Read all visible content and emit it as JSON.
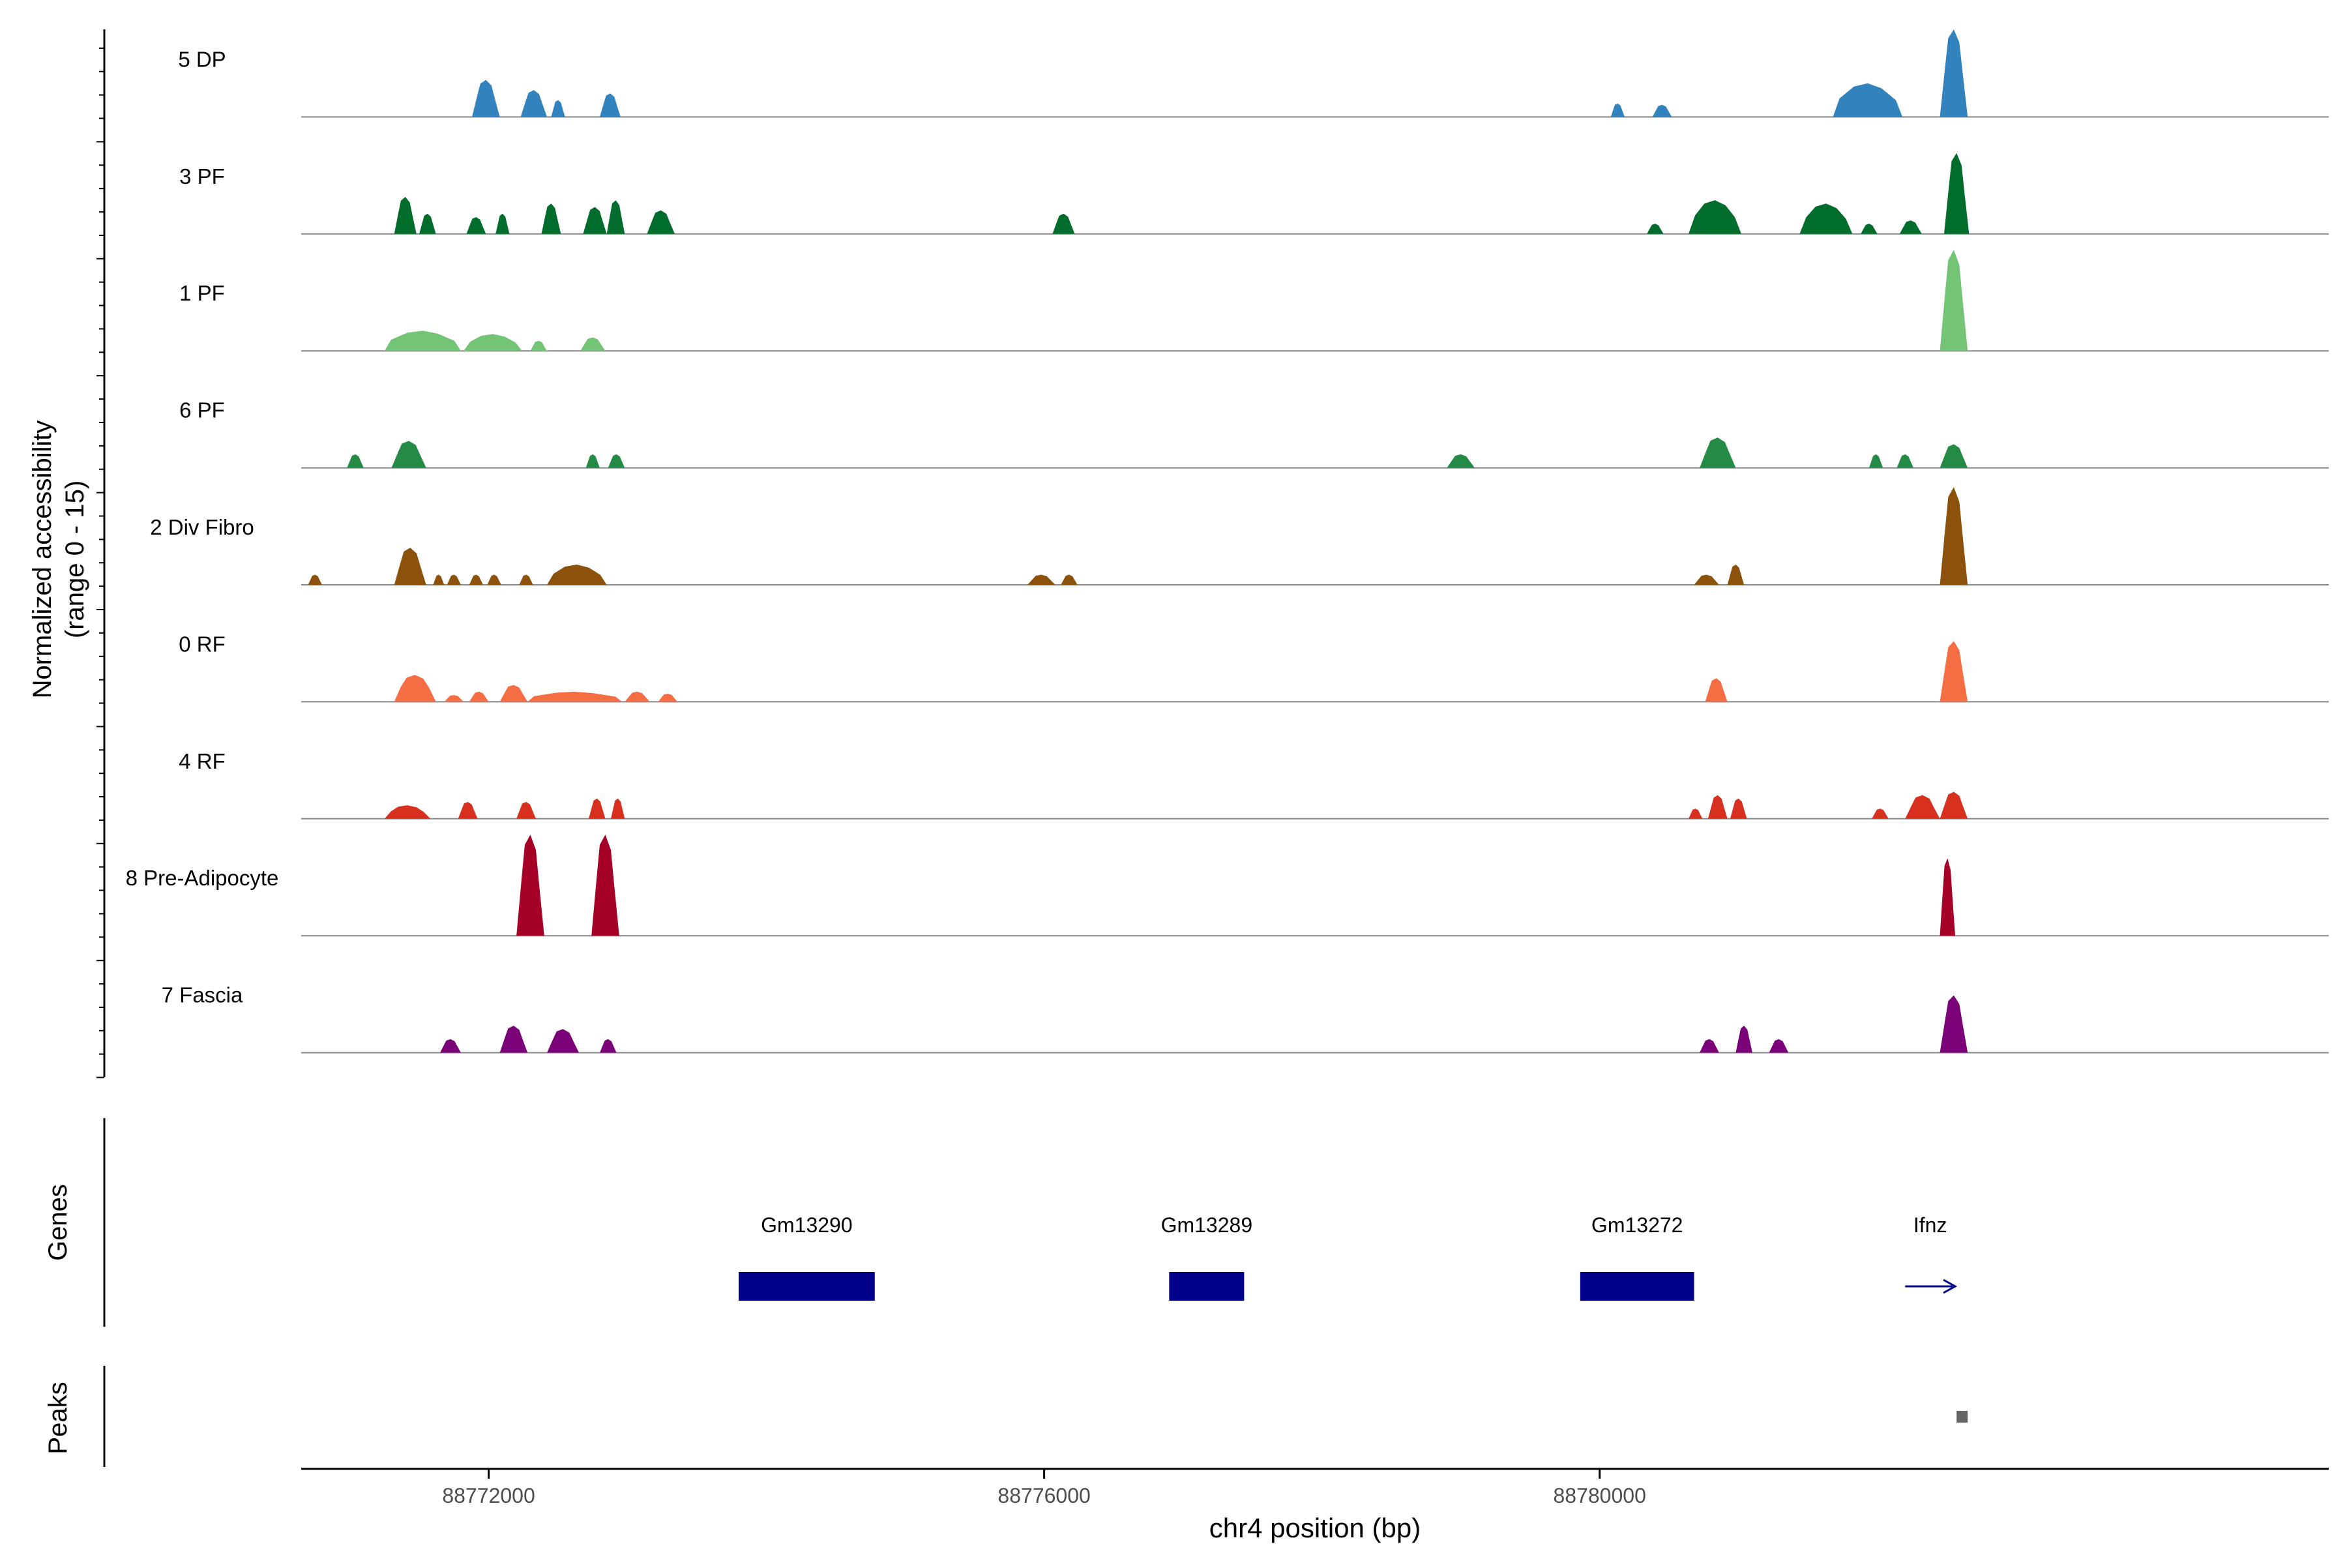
{
  "chart_data": {
    "type": "area",
    "ylabel": "Normalized accessibility",
    "ylabel_range": "(range 0 - 15)",
    "xlabel": "chr4 position (bp)",
    "xlim": [
      88770650,
      88785250
    ],
    "x_ticks": [
      88772000,
      88776000,
      88780000
    ],
    "x_tick_labels": [
      "88772000",
      "88776000",
      "88780000"
    ],
    "ylim": [
      0,
      15
    ],
    "grid": false,
    "tracks": [
      {
        "name": "5 DP",
        "color": "#3182bd",
        "peaks": [
          [
            88771880,
            88772080,
            5.5
          ],
          [
            88772230,
            88772420,
            4.0
          ],
          [
            88772450,
            88772550,
            2.5
          ],
          [
            88772800,
            88772950,
            3.5
          ],
          [
            88780080,
            88780180,
            2.0
          ],
          [
            88780380,
            88780520,
            1.8
          ],
          [
            88781680,
            88782180,
            5.0
          ],
          [
            88782450,
            88782650,
            13.0
          ]
        ]
      },
      {
        "name": "3 PF",
        "color": "#006d2c",
        "peaks": [
          [
            88771320,
            88771480,
            5.5
          ],
          [
            88771500,
            88771620,
            3.0
          ],
          [
            88771840,
            88771980,
            2.5
          ],
          [
            88772050,
            88772150,
            3.0
          ],
          [
            88772380,
            88772520,
            4.5
          ],
          [
            88772680,
            88772850,
            4.0
          ],
          [
            88772850,
            88772980,
            5.0
          ],
          [
            88773140,
            88773340,
            3.5
          ],
          [
            88776060,
            88776220,
            3.0
          ],
          [
            88780340,
            88780460,
            1.5
          ],
          [
            88780640,
            88781020,
            5.0
          ],
          [
            88781440,
            88781820,
            4.5
          ],
          [
            88781880,
            88782000,
            1.5
          ],
          [
            88782160,
            88782320,
            2.0
          ],
          [
            88782480,
            88782660,
            12.0
          ]
        ]
      },
      {
        "name": "1 PF",
        "color": "#74c476",
        "peaks": [
          [
            88771250,
            88771800,
            3.0
          ],
          [
            88771820,
            88772240,
            2.5
          ],
          [
            88772300,
            88772420,
            1.5
          ],
          [
            88772660,
            88772840,
            2.0
          ],
          [
            88782450,
            88782650,
            15.0
          ]
        ]
      },
      {
        "name": "6 PF",
        "color": "#238b45",
        "peaks": [
          [
            88770980,
            88771100,
            2.0
          ],
          [
            88771300,
            88771550,
            4.0
          ],
          [
            88772700,
            88772800,
            2.0
          ],
          [
            88772860,
            88772980,
            2.0
          ],
          [
            88778900,
            88779100,
            2.0
          ],
          [
            88780720,
            88780980,
            4.5
          ],
          [
            88781940,
            88782040,
            2.0
          ],
          [
            88782140,
            88782260,
            2.0
          ],
          [
            88782450,
            88782650,
            3.5
          ]
        ]
      },
      {
        "name": "2 Div Fibro",
        "color": "#8c510a",
        "peaks": [
          [
            88770700,
            88770800,
            1.5
          ],
          [
            88771320,
            88771550,
            5.5
          ],
          [
            88771600,
            88771680,
            1.5
          ],
          [
            88771700,
            88771800,
            1.5
          ],
          [
            88771860,
            88771960,
            1.5
          ],
          [
            88771990,
            88772090,
            1.5
          ],
          [
            88772220,
            88772320,
            1.5
          ],
          [
            88772420,
            88772850,
            3.0
          ],
          [
            88775880,
            88776080,
            1.5
          ],
          [
            88776120,
            88776240,
            1.5
          ],
          [
            88780680,
            88780860,
            1.5
          ],
          [
            88780920,
            88781040,
            3.0
          ],
          [
            88782450,
            88782650,
            14.5
          ]
        ]
      },
      {
        "name": "0 RF",
        "color": "#f46d43",
        "peaks": [
          [
            88771320,
            88771620,
            4.0
          ],
          [
            88771680,
            88771820,
            1.0
          ],
          [
            88771860,
            88772000,
            1.5
          ],
          [
            88772080,
            88772280,
            2.5
          ],
          [
            88772280,
            88772960,
            1.5
          ],
          [
            88773220,
            88773360,
            1.2
          ],
          [
            88772980,
            88773160,
            1.5
          ],
          [
            88780760,
            88780920,
            3.5
          ],
          [
            88782450,
            88782650,
            9.0
          ]
        ]
      },
      {
        "name": "4 RF",
        "color": "#d7301f",
        "peaks": [
          [
            88771250,
            88771580,
            2.0
          ],
          [
            88771780,
            88771920,
            2.5
          ],
          [
            88772200,
            88772340,
            2.5
          ],
          [
            88772720,
            88772840,
            3.0
          ],
          [
            88772880,
            88772980,
            3.0
          ],
          [
            88780640,
            88780740,
            1.5
          ],
          [
            88780780,
            88780920,
            3.5
          ],
          [
            88780940,
            88781060,
            3.0
          ],
          [
            88781960,
            88782080,
            1.5
          ],
          [
            88782200,
            88782450,
            3.5
          ],
          [
            88782450,
            88782650,
            4.0
          ]
        ]
      },
      {
        "name": "8 Pre-Adipocyte",
        "color": "#a50026",
        "peaks": [
          [
            88772200,
            88772400,
            15.0
          ],
          [
            88772740,
            88772940,
            15.0
          ],
          [
            88782450,
            88782560,
            11.5
          ]
        ]
      },
      {
        "name": "7 Fascia",
        "color": "#7a0177",
        "peaks": [
          [
            88771650,
            88771800,
            2.0
          ],
          [
            88772080,
            88772280,
            4.0
          ],
          [
            88772420,
            88772650,
            3.5
          ],
          [
            88772800,
            88772920,
            2.0
          ],
          [
            88780720,
            88780860,
            2.0
          ],
          [
            88780980,
            88781100,
            4.0
          ],
          [
            88781220,
            88781360,
            2.0
          ],
          [
            88782450,
            88782650,
            8.5
          ]
        ]
      }
    ],
    "genes": {
      "label": "Genes",
      "items": [
        {
          "name": "Gm13290",
          "start": 88773800,
          "end": 88774780,
          "type": "block"
        },
        {
          "name": "Gm13289",
          "start": 88776900,
          "end": 88777440,
          "type": "block"
        },
        {
          "name": "Gm13272",
          "start": 88779860,
          "end": 88780680,
          "type": "block"
        },
        {
          "name": "Ifnz",
          "start": 88782200,
          "end": 88782560,
          "type": "arrow"
        }
      ],
      "color": "#00008b"
    },
    "peaks_track": {
      "label": "Peaks",
      "items": [
        {
          "start": 88782570,
          "end": 88782650
        }
      ],
      "color": "#666666"
    }
  }
}
